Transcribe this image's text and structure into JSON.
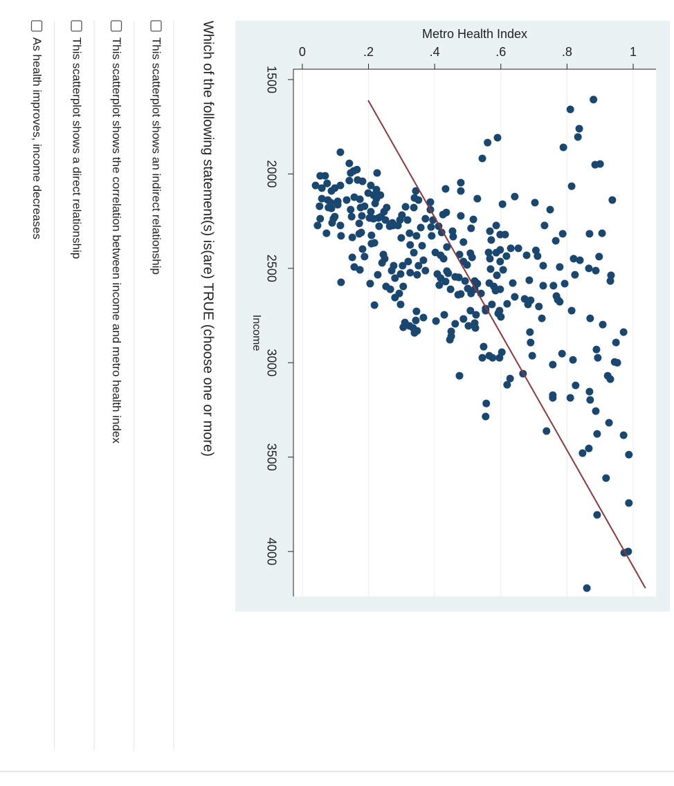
{
  "question": "Which of the following statement(s) is(are) TRUE (choose one or more)",
  "options": [
    "This scatterplot shows an indirect relationship",
    "This scatterplot shows the correlation between income and metro health index",
    "This scatterplot shows a direct relationship",
    "As health improves, income decreases"
  ],
  "chart_data": {
    "type": "scatter",
    "xlabel": "Income",
    "ylabel": "Metro Health Index",
    "xlim": [
      1445,
      4238
    ],
    "ylim": [
      -0.027,
      1.069
    ],
    "xticks": [
      1500,
      2000,
      2500,
      3000,
      3500,
      4000
    ],
    "yticks": [
      0,
      {
        "value": 0.2,
        "label": ".2"
      },
      {
        "value": 0.4,
        "label": ".4"
      },
      {
        "value": 0.6,
        "label": ".6"
      },
      {
        "value": 0.8,
        "label": ".8"
      },
      1
    ],
    "grid": true,
    "x": [
      1606,
      1658,
      1760,
      1804,
      1859,
      1808,
      1834,
      1918,
      1947,
      1951,
      2065,
      2138,
      2120,
      2160,
      2152,
      2189,
      2317,
      2314,
      2273,
      2317,
      2354,
      2438,
      2449,
      2457,
      2500,
      2537,
      2567,
      2512,
      2493,
      2534,
      2581,
      2647,
      2677,
      2724,
      2765,
      2798,
      2838,
      2893,
      2930,
      2974,
      2952,
      2985,
      2996,
      3000,
      3069,
      3087,
      3010,
      3120,
      3153,
      3186,
      3197,
      3256,
      3318,
      3377,
      3384,
      3454,
      3479,
      3487,
      3611,
      3743,
      3806,
      4007,
      4000,
      4194,
      3362,
      3172,
      3186,
      2963,
      2893,
      2838,
      2765,
      2702,
      2669,
      2691,
      2662,
      2592,
      2666,
      2592,
      2563,
      2578,
      2486,
      2435,
      2405,
      2431,
      2394,
      2394,
      2435,
      2402,
      2464,
      2417,
      2508,
      2504,
      2537,
      2578,
      2596,
      2611,
      2618,
      2651,
      2688,
      2739,
      2757,
      2724,
      2963,
      2974,
      2974,
      2974,
      2915,
      2944,
      3084,
      3117,
      3058,
      3216,
      3285,
      3069,
      2790,
      2805,
      2816,
      2768,
      2724,
      2746,
      2794,
      2834,
      2878,
      2860,
      2746,
      2779,
      2761,
      2728,
      2776,
      2816,
      2842,
      2805,
      2787,
      2812,
      2831,
      2691,
      2655,
      2633,
      2611,
      2596,
      2596,
      2552,
      2530,
      2512,
      2486,
      2486,
      2464,
      2523,
      2486,
      2534,
      2512,
      2457,
      2417,
      2380,
      2376,
      2328,
      2314,
      2284,
      2244,
      2273,
      2259,
      2218,
      2174,
      2178,
      2127,
      2138,
      2090,
      2149,
      2189,
      2237,
      2281,
      2244,
      2277,
      2328,
      2310,
      2416,
      2530,
      2552,
      2570,
      2589,
      2515,
      2449,
      2431,
      2387,
      2332,
      2204,
      2303,
      2526,
      2545,
      2611,
      2548,
      2567,
      2482,
      2464,
      2420,
      2442,
      2427,
      2361,
      2222,
      2241,
      2288,
      2131,
      2090,
      2046,
      2079,
      2215,
      2640,
      2636,
      2607,
      2611,
      2633,
      2581,
      2567,
      2633,
      2713,
      2350,
      2416,
      2303,
      2273,
      2321,
      2321,
      2449,
      2691,
      2724,
      2131,
      2083,
      2112,
      2112,
      1995,
      2061,
      2101,
      2039,
      2032,
      1984,
      1977,
      1944,
      1995,
      2035,
      1885,
      2010,
      2010,
      2050,
      2075,
      2090,
      2061,
      2075,
      2131,
      2138,
      2171,
      2152,
      2145,
      2178,
      2182,
      2163,
      2138,
      2123,
      2134,
      2222,
      2171,
      2178,
      2226,
      2189,
      2262,
      2317,
      2336,
      2328,
      2273,
      2259,
      2237,
      2273,
      2237,
      2314,
      2226,
      2061,
      2310,
      2233,
      2200,
      2237,
      2233,
      2277,
      2325,
      2365,
      2369,
      2233,
      2156,
      2226,
      2200,
      2178,
      2244,
      2266,
      2273,
      2427,
      2471,
      2449,
      2398,
      2438,
      2442,
      2508,
      2493,
      2534,
      2581,
      2695,
      2574,
      2244,
      2339,
      2277
    ],
    "series": [
      {
        "color": "#1a476f",
        "values": [
          0.88,
          0.81,
          0.837,
          0.833,
          0.789,
          0.59,
          0.56,
          0.544,
          0.9,
          0.885,
          0.814,
          0.937,
          0.642,
          0.605,
          0.703,
          0.749,
          0.868,
          0.906,
          0.732,
          0.787,
          0.766,
          0.897,
          0.82,
          0.839,
          0.866,
          0.933,
          0.931,
          0.887,
          0.778,
          0.824,
          0.793,
          0.768,
          0.778,
          0.814,
          0.87,
          0.908,
          0.971,
          0.948,
          0.889,
          0.893,
          0.785,
          0.818,
          0.944,
          0.952,
          0.923,
          0.931,
          0.757,
          0.826,
          0.868,
          0.81,
          0.87,
          0.887,
          0.927,
          0.891,
          0.971,
          0.866,
          0.847,
          0.987,
          0.918,
          0.987,
          0.891,
          0.973,
          0.985,
          0.86,
          0.738,
          0.757,
          0.757,
          0.695,
          0.69,
          0.688,
          0.724,
          0.715,
          0.69,
          0.682,
          0.672,
          0.759,
          0.772,
          0.728,
          0.686,
          0.636,
          0.728,
          0.711,
          0.706,
          0.678,
          0.653,
          0.63,
          0.617,
          0.598,
          0.598,
          0.586,
          0.607,
          0.569,
          0.588,
          0.565,
          0.579,
          0.598,
          0.584,
          0.642,
          0.619,
          0.592,
          0.6,
          0.554,
          0.565,
          0.575,
          0.596,
          0.544,
          0.548,
          0.603,
          0.628,
          0.619,
          0.667,
          0.556,
          0.554,
          0.475,
          0.521,
          0.502,
          0.523,
          0.487,
          0.508,
          0.525,
          0.462,
          0.45,
          0.446,
          0.45,
          0.429,
          0.404,
          0.366,
          0.345,
          0.343,
          0.335,
          0.339,
          0.324,
          0.31,
          0.305,
          0.347,
          0.297,
          0.28,
          0.293,
          0.266,
          0.253,
          0.305,
          0.28,
          0.297,
          0.27,
          0.276,
          0.303,
          0.32,
          0.326,
          0.351,
          0.347,
          0.372,
          0.366,
          0.337,
          0.362,
          0.326,
          0.345,
          0.324,
          0.358,
          0.318,
          0.289,
          0.272,
          0.301,
          0.312,
          0.337,
          0.339,
          0.351,
          0.343,
          0.387,
          0.387,
          0.372,
          0.389,
          0.395,
          0.412,
          0.391,
          0.421,
          0.402,
          0.408,
          0.418,
          0.433,
          0.414,
          0.437,
          0.427,
          0.418,
          0.437,
          0.456,
          0.435,
          0.454,
          0.441,
          0.462,
          0.448,
          0.473,
          0.492,
          0.498,
          0.487,
          0.508,
          0.513,
          0.475,
          0.487,
          0.479,
          0.517,
          0.51,
          0.529,
          0.479,
          0.479,
          0.433,
          0.425,
          0.471,
          0.479,
          0.5,
          0.521,
          0.51,
          0.529,
          0.521,
          0.54,
          0.554,
          0.571,
          0.563,
          0.567,
          0.586,
          0.598,
          0.613,
          0.567,
          0.573,
          0.596,
          0.224,
          0.224,
          0.236,
          0.215,
          0.226,
          0.207,
          0.199,
          0.182,
          0.167,
          0.155,
          0.165,
          0.142,
          0.146,
          0.142,
          0.115,
          0.069,
          0.054,
          0.075,
          0.098,
          0.088,
          0.04,
          0.059,
          0.059,
          0.077,
          0.052,
          0.086,
          0.107,
          0.079,
          0.088,
          0.107,
          0.134,
          0.157,
          0.174,
          0.18,
          0.188,
          0.176,
          0.149,
          0.146,
          0.172,
          0.172,
          0.151,
          0.117,
          0.115,
          0.09,
          0.094,
          0.046,
          0.054,
          0.073,
          0.098,
          0.115,
          0.178,
          0.203,
          0.207,
          0.215,
          0.23,
          0.232,
          0.209,
          0.218,
          0.209,
          0.207,
          0.22,
          0.238,
          0.247,
          0.255,
          0.251,
          0.266,
          0.274,
          0.245,
          0.241,
          0.249,
          0.182,
          0.188,
          0.151,
          0.174,
          0.157,
          0.228,
          0.205,
          0.218,
          0.117,
          0.295,
          0.299,
          0.264
        ]
      },
      {
        "type": "line",
        "color": "#90353b",
        "x": [
          1610,
          4194
        ],
        "values": [
          0.199,
          1.037
        ]
      }
    ]
  }
}
